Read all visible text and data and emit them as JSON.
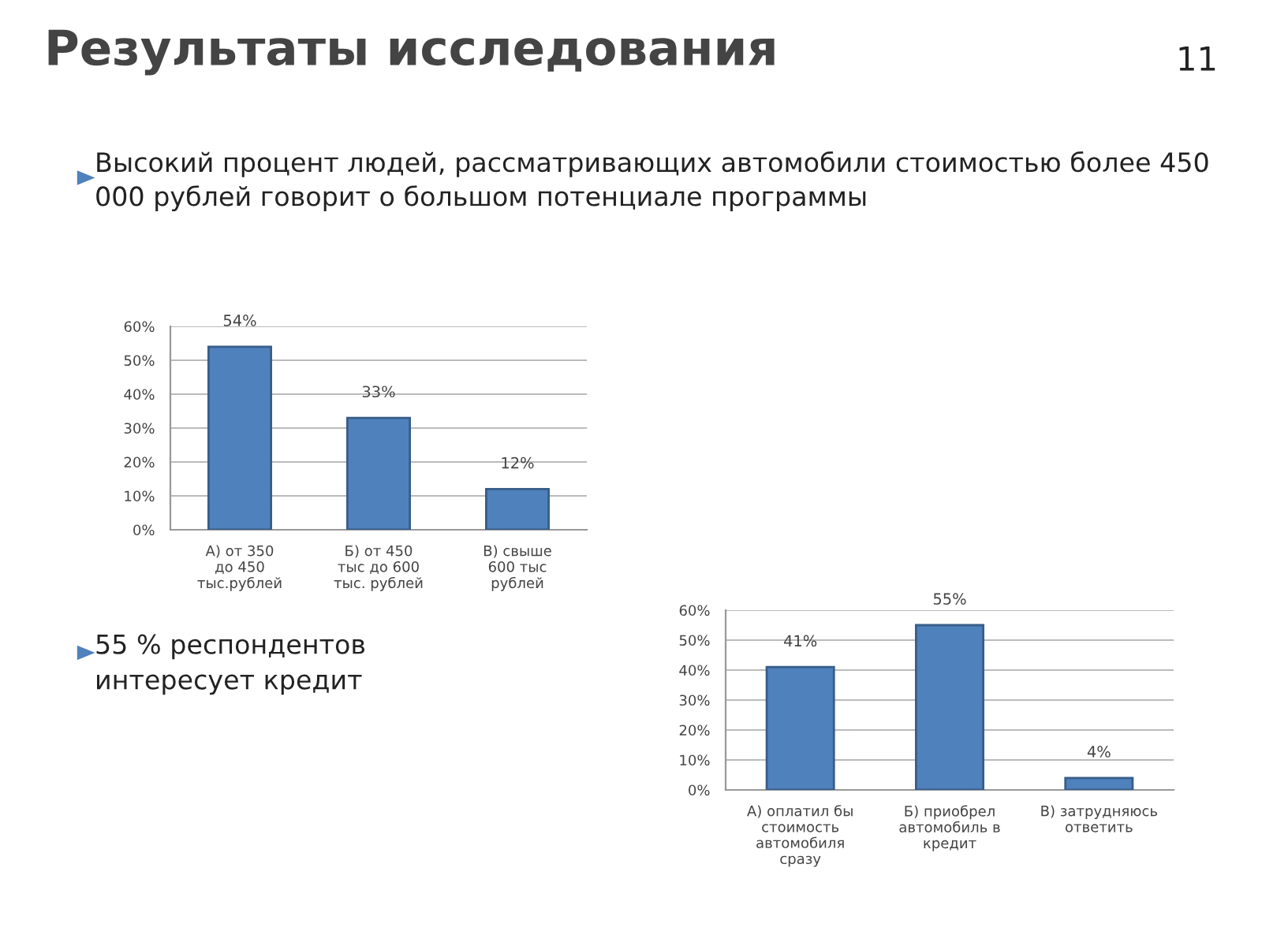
{
  "chart_data": [
    {
      "type": "bar",
      "title": "Результаты исследования",
      "subtitle": "Высокий процент людей, рассматривающих автомобили стоимостью более 450 000 рублей говорит о большом потенциале программы",
      "annotations": [
        "11"
      ],
      "categories": [
        "А) от 350 до 450 тыс.рублей",
        "Б) от 450 тыс до 600  тыс. рублей",
        "В) свыше 600 тыс рублей"
      ],
      "values": [
        54,
        33,
        12
      ],
      "value_labels": [
        "54%",
        "33%",
        "12%"
      ],
      "color": "#4f81bd",
      "ylim": [
        0,
        60
      ],
      "yticks": [
        {
          "value": 0,
          "label": "0%"
        },
        {
          "value": 10,
          "label": "10%"
        },
        {
          "value": 20,
          "label": "20%"
        },
        {
          "value": 30,
          "label": "30%"
        },
        {
          "value": 40,
          "label": "40%"
        },
        {
          "value": 50,
          "label": "50%"
        },
        {
          "value": 60,
          "label": "60%"
        }
      ],
      "grid": "y"
    },
    {
      "type": "bar",
      "annotations": [
        "55 % респондентов интересует кредит"
      ],
      "categories": [
        "А) оплатил бы стоимость автомобиля сразу",
        "Б) приобрел автомобиль в кредит",
        "В) затрудняюсь ответить"
      ],
      "values": [
        41,
        55,
        4
      ],
      "value_labels": [
        "41%",
        "55%",
        "4%"
      ],
      "color": "#4f81bd",
      "ylim": [
        0,
        60
      ],
      "yticks": [
        {
          "value": 0,
          "label": "0%"
        },
        {
          "value": 10,
          "label": "10%"
        },
        {
          "value": 20,
          "label": "20%"
        },
        {
          "value": 30,
          "label": "30%"
        },
        {
          "value": 40,
          "label": "40%"
        },
        {
          "value": 50,
          "label": "50%"
        },
        {
          "value": 60,
          "label": "60%"
        }
      ],
      "grid": "y"
    }
  ]
}
